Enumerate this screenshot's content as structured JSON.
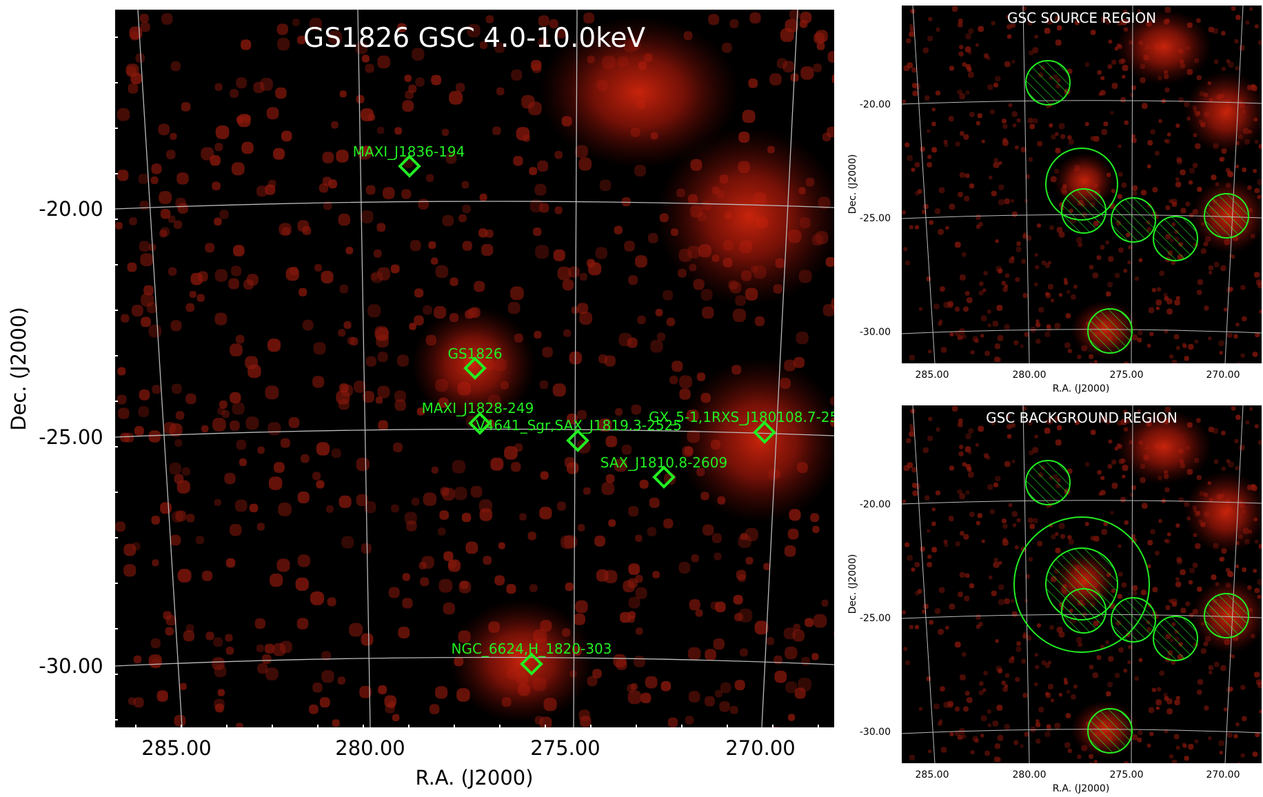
{
  "main": {
    "title": "GS1826 GSC 4.0-10.0keV",
    "xlabel": "R.A. (J2000)",
    "ylabel": "Dec. (J2000)",
    "xticks": [
      "285.00",
      "280.00",
      "275.00",
      "270.00"
    ],
    "yticks": [
      "-20.00",
      "-25.00",
      "-30.00"
    ],
    "sources": [
      {
        "name": "MAXI_J1836-194"
      },
      {
        "name": "GS1826"
      },
      {
        "name": "MAXI_J1828-249"
      },
      {
        "name": "V4641_Sgr,SAX_J1819.3-2525"
      },
      {
        "name": "GX_5-1,1RXS_J180108.7-25"
      },
      {
        "name": "SAX_J1810.8-2609"
      },
      {
        "name": "NGC_6624,H_1820-303"
      }
    ]
  },
  "source_region": {
    "title": "GSC SOURCE REGION",
    "xlabel": "R.A. (J2000)",
    "ylabel": "Dec. (J2000)",
    "xticks": [
      "285.00",
      "280.00",
      "275.00",
      "270.00"
    ],
    "yticks": [
      "-20.00",
      "-25.00",
      "-30.00"
    ]
  },
  "background_region": {
    "title": "GSC BACKGROUND REGION",
    "xlabel": "R.A. (J2000)",
    "ylabel": "Dec. (J2000)",
    "xticks": [
      "285.00",
      "280.00",
      "275.00",
      "270.00"
    ],
    "yticks": [
      "-20.00",
      "-25.00",
      "-30.00"
    ]
  },
  "colors": {
    "marker": "#22ee22",
    "glow": "#c81e0a",
    "grid": "#bbbbbb"
  }
}
